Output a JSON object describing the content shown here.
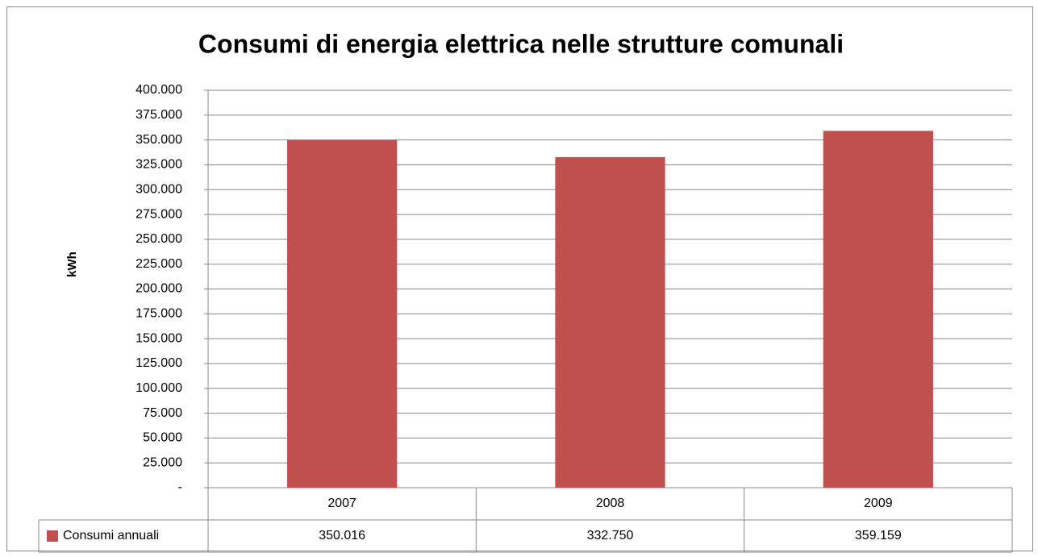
{
  "chart_data": {
    "type": "bar",
    "title": "Consumi di energia elettrica nelle strutture comunali",
    "y_label": "kWh",
    "categories": [
      "2007",
      "2008",
      "2009"
    ],
    "series": [
      {
        "name": "Consumi annuali",
        "color": "#c0504d",
        "values": [
          350016,
          332750,
          359159
        ],
        "value_labels": [
          "350.016",
          "332.750",
          "359.159"
        ]
      }
    ],
    "ylim": [
      0,
      400000
    ],
    "yticks": [
      {
        "value": 0,
        "label": "-"
      },
      {
        "value": 25000,
        "label": "25.000"
      },
      {
        "value": 50000,
        "label": "50.000"
      },
      {
        "value": 75000,
        "label": "75.000"
      },
      {
        "value": 100000,
        "label": "100.000"
      },
      {
        "value": 125000,
        "label": "125.000"
      },
      {
        "value": 150000,
        "label": "150.000"
      },
      {
        "value": 175000,
        "label": "175.000"
      },
      {
        "value": 200000,
        "label": "200.000"
      },
      {
        "value": 225000,
        "label": "225.000"
      },
      {
        "value": 250000,
        "label": "250.000"
      },
      {
        "value": 275000,
        "label": "275.000"
      },
      {
        "value": 300000,
        "label": "300.000"
      },
      {
        "value": 325000,
        "label": "325.000"
      },
      {
        "value": 350000,
        "label": "350.000"
      },
      {
        "value": 375000,
        "label": "375.000"
      },
      {
        "value": 400000,
        "label": "400.000"
      }
    ],
    "grid": true,
    "legend": "data-table"
  }
}
